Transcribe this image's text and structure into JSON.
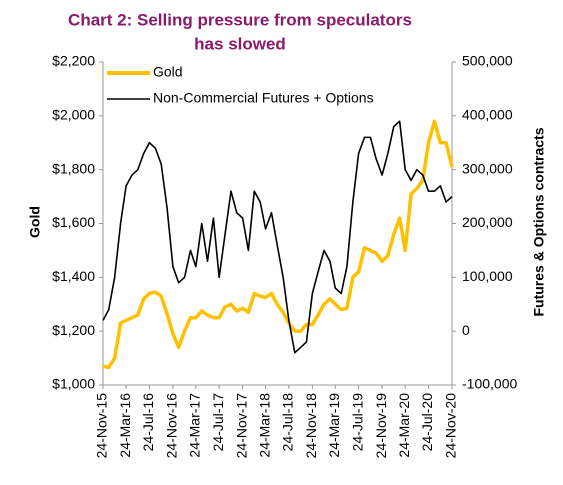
{
  "chart_data": {
    "type": "line",
    "title": [
      "Chart 2: Selling pressure from speculators",
      "has slowed"
    ],
    "ylabel": "Gold",
    "y2label": "Futures & Options contracts",
    "x": [
      "2015-11-24",
      "2015-12-24",
      "2016-01-24",
      "2016-02-24",
      "2016-03-24",
      "2016-04-24",
      "2016-05-24",
      "2016-06-24",
      "2016-07-24",
      "2016-08-24",
      "2016-09-24",
      "2016-10-24",
      "2016-11-24",
      "2016-12-24",
      "2017-01-24",
      "2017-02-24",
      "2017-03-24",
      "2017-04-24",
      "2017-05-24",
      "2017-06-24",
      "2017-07-24",
      "2017-08-24",
      "2017-09-24",
      "2017-10-24",
      "2017-11-24",
      "2017-12-24",
      "2018-01-24",
      "2018-02-24",
      "2018-03-24",
      "2018-04-24",
      "2018-05-24",
      "2018-06-24",
      "2018-07-24",
      "2018-08-24",
      "2018-09-24",
      "2018-10-24",
      "2018-11-24",
      "2018-12-24",
      "2019-01-24",
      "2019-02-24",
      "2019-03-24",
      "2019-04-24",
      "2019-05-24",
      "2019-06-24",
      "2019-07-24",
      "2019-08-24",
      "2019-09-24",
      "2019-10-24",
      "2019-11-24",
      "2019-12-24",
      "2020-01-24",
      "2020-02-24",
      "2020-03-24",
      "2020-04-24",
      "2020-05-24",
      "2020-06-24",
      "2020-07-24",
      "2020-08-24",
      "2020-09-24",
      "2020-10-24",
      "2020-11-24"
    ],
    "series": [
      {
        "name": "Gold",
        "color": "#ffc000",
        "axis": "y",
        "values": [
          1070,
          1065,
          1100,
          1230,
          1240,
          1250,
          1260,
          1320,
          1340,
          1345,
          1330,
          1265,
          1190,
          1140,
          1200,
          1250,
          1250,
          1275,
          1260,
          1250,
          1250,
          1290,
          1300,
          1275,
          1285,
          1270,
          1340,
          1330,
          1325,
          1340,
          1300,
          1270,
          1230,
          1200,
          1200,
          1225,
          1225,
          1260,
          1300,
          1320,
          1300,
          1280,
          1285,
          1400,
          1420,
          1510,
          1500,
          1490,
          1460,
          1480,
          1560,
          1620,
          1500,
          1710,
          1730,
          1760,
          1900,
          1980,
          1900,
          1900,
          1810
        ]
      },
      {
        "name": "Non-Commercial Futures + Options",
        "color": "#000000",
        "axis": "y2",
        "values": [
          20000,
          40000,
          100000,
          200000,
          270000,
          290000,
          300000,
          330000,
          350000,
          340000,
          310000,
          230000,
          120000,
          90000,
          100000,
          150000,
          120000,
          200000,
          130000,
          210000,
          100000,
          180000,
          260000,
          220000,
          210000,
          150000,
          260000,
          240000,
          190000,
          220000,
          160000,
          100000,
          20000,
          -40000,
          -30000,
          -20000,
          70000,
          110000,
          150000,
          130000,
          80000,
          70000,
          120000,
          240000,
          330000,
          360000,
          360000,
          320000,
          290000,
          330000,
          380000,
          390000,
          300000,
          280000,
          300000,
          290000,
          260000,
          260000,
          270000,
          240000,
          250000
        ]
      }
    ],
    "xlim": [
      "2015-11-24",
      "2020-11-24"
    ],
    "xticks": [
      {
        "value": "2015-11-24",
        "label": "24-Nov-15"
      },
      {
        "value": "2016-03-24",
        "label": "24-Mar-16"
      },
      {
        "value": "2016-07-24",
        "label": "24-Jul-16"
      },
      {
        "value": "2016-11-24",
        "label": "24-Nov-16"
      },
      {
        "value": "2017-03-24",
        "label": "24-Mar-17"
      },
      {
        "value": "2017-07-24",
        "label": "24-Jul-17"
      },
      {
        "value": "2017-11-24",
        "label": "24-Nov-17"
      },
      {
        "value": "2018-03-24",
        "label": "24-Mar-18"
      },
      {
        "value": "2018-07-24",
        "label": "24-Jul-18"
      },
      {
        "value": "2018-11-24",
        "label": "24-Nov-18"
      },
      {
        "value": "2019-03-24",
        "label": "24-Mar-19"
      },
      {
        "value": "2019-07-24",
        "label": "24-Jul-19"
      },
      {
        "value": "2019-11-24",
        "label": "24-Nov-19"
      },
      {
        "value": "2020-03-24",
        "label": "24-Mar-20"
      },
      {
        "value": "2020-07-24",
        "label": "24-Jul-20"
      },
      {
        "value": "2020-11-24",
        "label": "24-Nov-20"
      }
    ],
    "ylim": [
      1000,
      2200
    ],
    "yticks": [
      {
        "value": 1000,
        "label": "$1,000"
      },
      {
        "value": 1200,
        "label": "$1,200"
      },
      {
        "value": 1400,
        "label": "$1,400"
      },
      {
        "value": 1600,
        "label": "$1,600"
      },
      {
        "value": 1800,
        "label": "$1,800"
      },
      {
        "value": 2000,
        "label": "$2,000"
      },
      {
        "value": 2200,
        "label": "$2,200"
      }
    ],
    "y2lim": [
      -100000,
      500000
    ],
    "y2ticks": [
      {
        "value": -100000,
        "label": "-100,000"
      },
      0,
      {
        "value": 100000,
        "label": "100,000"
      },
      {
        "value": 200000,
        "label": "200,000"
      },
      {
        "value": 300000,
        "label": "300,000"
      },
      {
        "value": 400000,
        "label": "400,000"
      },
      {
        "value": 500000,
        "label": "500,000"
      }
    ],
    "grid": false,
    "legend": "upper left"
  }
}
